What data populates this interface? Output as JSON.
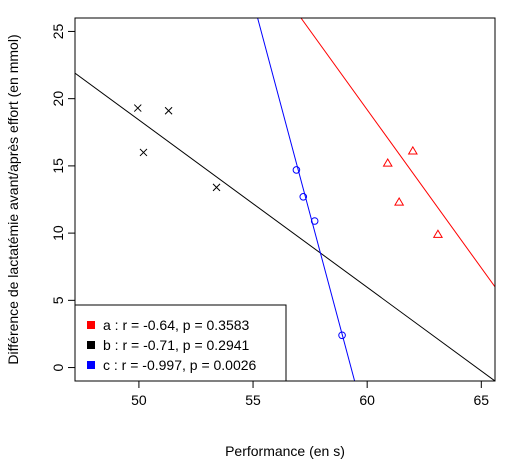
{
  "chart_data": {
    "type": "scatter",
    "title": "",
    "xlabel": "Performance (en s)",
    "ylabel": "Différence de lactatémie avant/après effort (en mmol)",
    "xlim": [
      47.2,
      65.6
    ],
    "ylim": [
      -1.0,
      26.0
    ],
    "xticks": [
      50,
      55,
      60,
      65
    ],
    "yticks": [
      0,
      5,
      10,
      15,
      20,
      25
    ],
    "grid": false,
    "legend_position": "bottom-left",
    "series": [
      {
        "name": "a : r = -0.64, p = 0.3583",
        "color": "#ff0000",
        "marker": "triangle",
        "x": [
          60.9,
          61.4,
          62.0,
          63.1
        ],
        "y": [
          15.2,
          12.3,
          16.1,
          9.9
        ],
        "fit": {
          "x": [
            57.1,
            65.6
          ],
          "y": [
            26.0,
            6.0
          ]
        }
      },
      {
        "name": "b : r = -0.71, p = 0.2941",
        "color": "#000000",
        "marker": "cross",
        "x": [
          49.95,
          50.2,
          51.3,
          53.4
        ],
        "y": [
          19.3,
          16.0,
          19.1,
          13.4
        ],
        "fit": {
          "x": [
            47.2,
            65.6
          ],
          "y": [
            21.9,
            -1.0
          ]
        }
      },
      {
        "name": "c : r = -0.997, p = 0.0026",
        "color": "#0000ff",
        "marker": "circle",
        "x": [
          56.9,
          57.2,
          57.7,
          58.9
        ],
        "y": [
          14.7,
          12.7,
          10.9,
          2.4
        ],
        "fit": {
          "x": [
            55.2,
            59.45
          ],
          "y": [
            26.0,
            -1.0
          ]
        }
      }
    ]
  }
}
